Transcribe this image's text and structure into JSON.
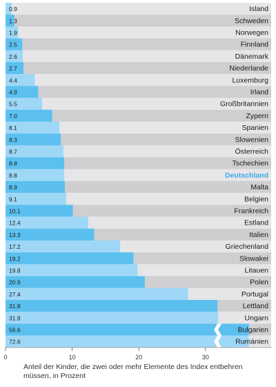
{
  "chart_data": {
    "type": "bar",
    "orientation": "horizontal",
    "categories": [
      "Island",
      "Schweden",
      "Norwegen",
      "Finnland",
      "Dänemark",
      "Niederlande",
      "Luxemburg",
      "Irland",
      "Großbritannien",
      "Zypern",
      "Spanien",
      "Slowenien",
      "Österreich",
      "Tschechien",
      "Deutschland",
      "Malta",
      "Belgien",
      "Frankreich",
      "Estland",
      "Italien",
      "Griechenland",
      "Slowakei",
      "Litauen",
      "Polen",
      "Portugal",
      "Lettland",
      "Ungarn",
      "Bulgarien",
      "Rumänien"
    ],
    "values": [
      0.9,
      1.3,
      1.9,
      2.5,
      2.6,
      2.7,
      4.4,
      4.9,
      5.5,
      7.0,
      8.1,
      8.3,
      8.7,
      8.8,
      8.8,
      8.9,
      9.1,
      10.1,
      12.4,
      13.3,
      17.2,
      19.2,
      19.8,
      20.9,
      27.4,
      31.8,
      31.9,
      56.6,
      72.6
    ],
    "value_labels": [
      "0.9",
      "1.3",
      "1.9",
      "2.5",
      "2.6",
      "2.7",
      "4.4",
      "4.9",
      "5.5",
      "7.0",
      "8.1",
      "8.3",
      "8.7",
      "8.8",
      "8.8",
      "8.9",
      "9.1",
      "10.1",
      "12.4",
      "13.3",
      "17.2",
      "19.2",
      "19.8",
      "20.9",
      "27.4",
      "31.8",
      "31.9",
      "56.6",
      "72.6"
    ],
    "xticks": [
      0,
      10,
      20,
      30
    ],
    "xlim": [
      0,
      34
    ],
    "axis_break_above": 32,
    "highlight": "Deutschland",
    "grid": false,
    "xlabel": "Anteil der Kinder, die zwei oder mehr Elemente des Index entbehren müssen, in Prozent",
    "title": ""
  },
  "caption": {
    "text": "Anteil der Kinder, die zwei oder mehr Elemente des Index entbehren müssen, in Prozent"
  },
  "colors": {
    "bar_dark": "#5bc0ef",
    "bar_light": "#9fd8f6",
    "row_dark": "#cfcfd1",
    "row_light": "#e6e6e8",
    "highlight_text": "#3aa9e6",
    "text": "#1a1a1a"
  }
}
